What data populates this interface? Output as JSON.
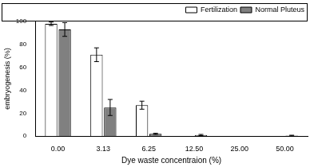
{
  "chart_data": {
    "type": "bar",
    "x_label": "Dye waste concentraion (%)",
    "y_label": "embryogenesis (%)",
    "categories": [
      "0.00",
      "3.13",
      "6.25",
      "12.50",
      "25.00",
      "50.00"
    ],
    "series": [
      {
        "name": "Fertilization",
        "color": "#ffffff",
        "values": [
          98,
          71,
          27,
          0,
          0,
          0
        ],
        "errors": [
          1.5,
          6,
          3.5,
          0,
          0,
          0
        ]
      },
      {
        "name": "Normal Pluteus",
        "color": "#808080",
        "values": [
          93,
          25,
          2,
          1,
          0,
          0.5
        ],
        "errors": [
          6,
          7,
          0.5,
          0.5,
          0,
          0.3
        ]
      }
    ],
    "ylim": [
      0,
      100
    ],
    "yticks": [
      0,
      20,
      40,
      60,
      80,
      100
    ],
    "grid": false,
    "legend": "upper right"
  }
}
